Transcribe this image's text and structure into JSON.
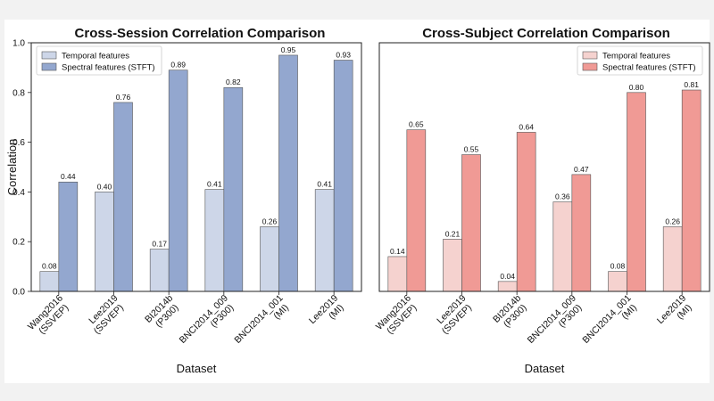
{
  "chart_data": [
    {
      "type": "bar",
      "title": "Cross-Session Correlation Comparison",
      "xlabel": "Dataset",
      "ylabel": "Correlation",
      "ylim": [
        0,
        1.0
      ],
      "yticks": [
        "0.0",
        "0.2",
        "0.4",
        "0.6",
        "0.8",
        "1.0"
      ],
      "categories": [
        [
          "Wang2016",
          "(SSVEP)"
        ],
        [
          "Lee2019",
          "(SSVEP)"
        ],
        [
          "BI2014b",
          "(P300)"
        ],
        [
          "BNCI2014_009",
          "(P300)"
        ],
        [
          "BNCI2014_001",
          "(MI)"
        ],
        [
          "Lee2019",
          "(MI)"
        ]
      ],
      "series": [
        {
          "name": "Temporal features",
          "values": [
            0.08,
            0.4,
            0.17,
            0.41,
            0.26,
            0.41
          ],
          "labels": [
            "0.08",
            "0.40",
            "0.17",
            "0.41",
            "0.26",
            "0.41"
          ],
          "color": "#cdd6e8"
        },
        {
          "name": "Spectral features (STFT)",
          "values": [
            0.44,
            0.76,
            0.89,
            0.82,
            0.95,
            0.93
          ],
          "labels": [
            "0.44",
            "0.76",
            "0.89",
            "0.82",
            "0.95",
            "0.93"
          ],
          "color": "#93a7cf"
        }
      ],
      "legend_position": "top-left"
    },
    {
      "type": "bar",
      "title": "Cross-Subject Correlation Comparison",
      "xlabel": "Dataset",
      "ylabel": "",
      "ylim": [
        0,
        1.0
      ],
      "yticks": [],
      "categories": [
        [
          "Wang2016",
          "(SSVEP)"
        ],
        [
          "Lee2019",
          "(SSVEP)"
        ],
        [
          "BI2014b",
          "(P300)"
        ],
        [
          "BNCI2014_009",
          "(P300)"
        ],
        [
          "BNCI2014_001",
          "(MI)"
        ],
        [
          "Lee2019",
          "(MI)"
        ]
      ],
      "series": [
        {
          "name": "Temporal features",
          "values": [
            0.14,
            0.21,
            0.04,
            0.36,
            0.08,
            0.26
          ],
          "labels": [
            "0.14",
            "0.21",
            "0.04",
            "0.36",
            "0.08",
            "0.26"
          ],
          "color": "#f5d2cf"
        },
        {
          "name": "Spectral features (STFT)",
          "values": [
            0.65,
            0.55,
            0.64,
            0.47,
            0.8,
            0.81
          ],
          "labels": [
            "0.65",
            "0.55",
            "0.64",
            "0.47",
            "0.80",
            "0.81"
          ],
          "color": "#f09a95"
        }
      ],
      "legend_position": "top-right"
    }
  ]
}
